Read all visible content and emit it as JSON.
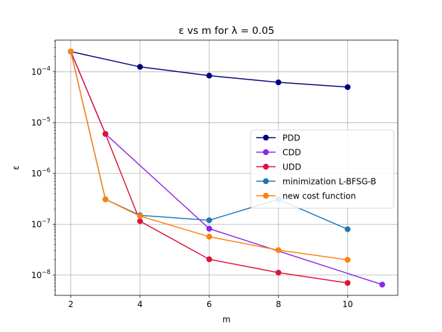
{
  "chart_data": {
    "type": "line",
    "title": "ε vs m for λ = 0.05",
    "xlabel": "m",
    "ylabel": "ε",
    "yscale": "log",
    "xlim": [
      1.55,
      11.45
    ],
    "ylim": [
      4e-09,
      0.00042
    ],
    "xticks": [
      2,
      4,
      6,
      8,
      10
    ],
    "xtick_labels": [
      "2",
      "4",
      "6",
      "8",
      "10"
    ],
    "yticks": [
      1e-08,
      1e-07,
      1e-06,
      1e-05,
      0.0001
    ],
    "ytick_labels": [
      {
        "base": "10",
        "exp": "−8"
      },
      {
        "base": "10",
        "exp": "−7"
      },
      {
        "base": "10",
        "exp": "−6"
      },
      {
        "base": "10",
        "exp": "−5"
      },
      {
        "base": "10",
        "exp": "−4"
      }
    ],
    "grid": true,
    "legend_position": "center-right",
    "series": [
      {
        "name": "PDD",
        "color": "#000080",
        "x": [
          2,
          4,
          6,
          8,
          10
        ],
        "y": [
          0.00025,
          0.000125,
          8.4e-05,
          6.2e-05,
          5e-05
        ]
      },
      {
        "name": "CDD",
        "color": "#8a2be2",
        "x": [
          2,
          3,
          6,
          11
        ],
        "y": [
          0.00025,
          6e-06,
          8.2e-08,
          6.5e-09
        ]
      },
      {
        "name": "UDD",
        "color": "#dc143c",
        "x": [
          2,
          3,
          4,
          6,
          8,
          10
        ],
        "y": [
          0.00025,
          6e-06,
          1.15e-07,
          2.05e-08,
          1.12e-08,
          7e-09
        ]
      },
      {
        "name": "minimization L-BFSG-B",
        "color": "#1f77b4",
        "x": [
          2,
          3,
          4,
          6,
          8,
          10
        ],
        "y": [
          0.00025,
          3.1e-07,
          1.5e-07,
          1.2e-07,
          3.1e-07,
          8e-08
        ]
      },
      {
        "name": "new cost function",
        "color": "#ff7f0e",
        "x": [
          2,
          3,
          4,
          6,
          8,
          10
        ],
        "y": [
          0.00025,
          3.1e-07,
          1.45e-07,
          5.7e-08,
          3.1e-08,
          2e-08
        ]
      }
    ]
  }
}
